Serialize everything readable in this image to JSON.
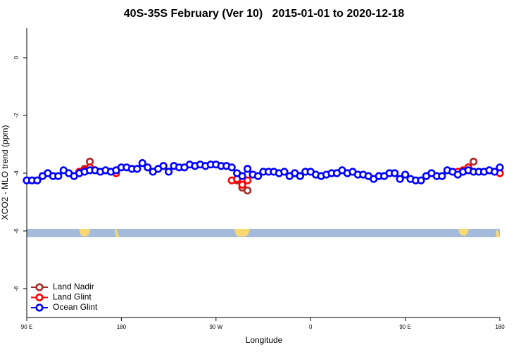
{
  "chart_data": {
    "type": "line",
    "title": "40S-35S February (Ver 10)   2015-01-01 to 2020-12-18",
    "x_label": "Longitude",
    "y_label": "XCO2 - MLO trend (ppm)",
    "x": [
      90,
      95,
      100,
      105,
      110,
      115,
      120,
      125,
      130,
      135,
      140,
      145,
      150,
      155,
      160,
      165,
      170,
      175,
      180,
      185,
      190,
      195,
      200,
      205,
      210,
      215,
      220,
      225,
      230,
      235,
      240,
      245,
      250,
      255,
      260,
      265,
      270,
      275,
      280,
      285,
      290,
      295,
      300,
      305,
      310,
      315,
      320,
      325,
      330,
      335,
      340,
      345,
      350,
      355,
      360,
      365,
      370,
      375,
      380,
      385,
      390,
      395,
      400,
      405,
      410,
      415,
      420,
      425,
      430,
      435,
      440,
      445,
      450,
      455,
      460,
      465,
      470,
      475,
      480,
      485,
      490,
      495,
      500,
      505,
      510,
      515,
      520,
      525,
      530,
      535,
      540
    ],
    "series": [
      {
        "name": "Land Nadir",
        "color": "#a52a2a",
        "values": [
          null,
          null,
          null,
          null,
          null,
          null,
          null,
          null,
          null,
          null,
          -3.95,
          -3.85,
          -3.6,
          null,
          null,
          null,
          null,
          null,
          null,
          null,
          null,
          null,
          null,
          null,
          null,
          null,
          null,
          null,
          null,
          null,
          null,
          null,
          null,
          null,
          null,
          null,
          null,
          null,
          null,
          null,
          -4.25,
          -4.5,
          -4.6,
          null,
          null,
          null,
          null,
          null,
          null,
          null,
          null,
          null,
          null,
          null,
          null,
          null,
          null,
          null,
          null,
          null,
          null,
          null,
          null,
          null,
          null,
          null,
          null,
          null,
          null,
          null,
          null,
          null,
          null,
          null,
          null,
          null,
          null,
          null,
          null,
          null,
          null,
          null,
          null,
          -3.95,
          -3.8,
          -3.6,
          null,
          null,
          null,
          null,
          null
        ]
      },
      {
        "name": "Land Glint",
        "color": "#ff0000",
        "values": [
          null,
          null,
          null,
          null,
          null,
          null,
          null,
          null,
          null,
          null,
          -3.95,
          -3.9,
          -3.8,
          null,
          null,
          null,
          null,
          -4.0,
          null,
          null,
          null,
          null,
          null,
          null,
          null,
          null,
          null,
          null,
          null,
          null,
          null,
          null,
          null,
          null,
          null,
          null,
          null,
          null,
          null,
          -4.25,
          -4.2,
          -4.4,
          -4.25,
          null,
          null,
          null,
          null,
          null,
          null,
          null,
          null,
          null,
          null,
          null,
          null,
          null,
          null,
          null,
          null,
          null,
          null,
          null,
          null,
          null,
          null,
          null,
          null,
          null,
          null,
          null,
          null,
          null,
          null,
          null,
          null,
          null,
          null,
          null,
          null,
          null,
          null,
          null,
          -3.95,
          -3.9,
          -3.8,
          null,
          null,
          null,
          null,
          null,
          -4.0
        ]
      },
      {
        "name": "Ocean Glint",
        "color": "#0000ff",
        "values": [
          -4.25,
          -4.25,
          -4.25,
          -4.1,
          -4.0,
          -4.1,
          -4.1,
          -3.9,
          -4.0,
          -4.1,
          -4.0,
          -3.95,
          -3.9,
          -3.9,
          -3.95,
          -3.9,
          -3.95,
          -3.9,
          -3.8,
          -3.8,
          -3.85,
          -3.85,
          -3.65,
          -3.8,
          -3.95,
          -3.85,
          -3.75,
          -3.95,
          -3.75,
          -3.8,
          -3.8,
          -3.7,
          -3.75,
          -3.7,
          -3.75,
          -3.7,
          -3.7,
          -3.75,
          -3.75,
          -3.8,
          -4.0,
          -4.1,
          -3.85,
          -4.05,
          -4.1,
          -3.95,
          -3.95,
          -3.95,
          -4.0,
          -3.95,
          -4.1,
          -4.0,
          -4.1,
          -3.95,
          -3.95,
          -4.05,
          -4.1,
          -4.05,
          -4.0,
          -4.0,
          -3.9,
          -4.0,
          -3.95,
          -4.05,
          -4.05,
          -4.1,
          -4.2,
          -4.1,
          -4.1,
          -4.0,
          -4.0,
          -4.2,
          -4.05,
          -4.2,
          -4.25,
          -4.25,
          -4.1,
          -4.0,
          -4.1,
          -4.1,
          -3.9,
          -3.95,
          -4.05,
          -3.95,
          -3.9,
          -3.95,
          -3.95,
          -3.95,
          -3.9,
          -3.95,
          -3.8
        ]
      }
    ],
    "xlim": [
      90,
      540
    ],
    "xticks": [
      {
        "value": 90,
        "label": "90 E"
      },
      180,
      {
        "value": 270,
        "label": "90 W"
      },
      {
        "value": 360,
        "label": "0"
      },
      {
        "value": 450,
        "label": "90 E"
      },
      {
        "value": 540,
        "label": "180"
      }
    ],
    "ylim": [
      -9,
      1
    ],
    "yticks": [
      0,
      -2,
      -4,
      -6,
      -8
    ],
    "legend": "bottomleft"
  }
}
